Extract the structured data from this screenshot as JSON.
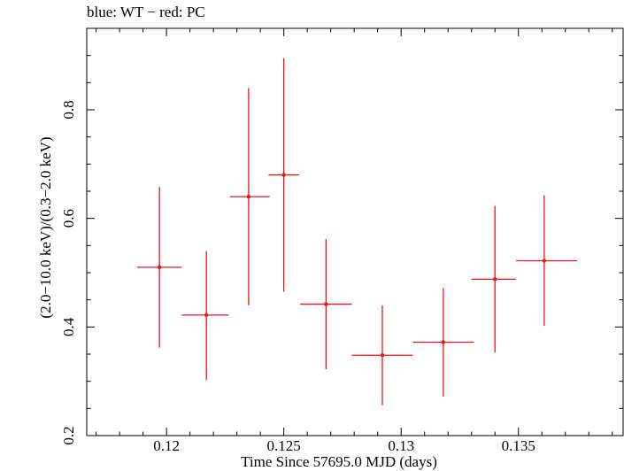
{
  "chart_data": {
    "type": "scatter",
    "title": "blue: WT − red: PC",
    "xlabel": "Time Since 57695.0 MJD (days)",
    "ylabel": "(2.0−10.0 keV)/(0.3−2.0 keV)",
    "xlim": [
      0.1166,
      0.1395
    ],
    "ylim": [
      0.2,
      0.95
    ],
    "x_ticks": [
      0.12,
      0.125,
      0.13,
      0.135
    ],
    "x_tick_labels": [
      "0.12",
      "0.125",
      "0.13",
      "0.135"
    ],
    "y_ticks": [
      0.2,
      0.4,
      0.6,
      0.8
    ],
    "y_tick_labels": [
      "0.2",
      "0.4",
      "0.6",
      "0.8"
    ],
    "grid": false,
    "series": [
      {
        "color": "#e8141d",
        "points": [
          {
            "x": 0.1197,
            "y": 0.51,
            "xerr_low": 0.00095,
            "xerr_high": 0.00095,
            "yerr_low": 0.148,
            "yerr_high": 0.148
          },
          {
            "x": 0.1217,
            "y": 0.422,
            "xerr_low": 0.00105,
            "xerr_high": 0.00095,
            "yerr_low": 0.12,
            "yerr_high": 0.118
          },
          {
            "x": 0.1235,
            "y": 0.64,
            "xerr_low": 0.0008,
            "xerr_high": 0.0009,
            "yerr_low": 0.2,
            "yerr_high": 0.2
          },
          {
            "x": 0.125,
            "y": 0.68,
            "xerr_low": 0.00065,
            "xerr_high": 0.00065,
            "yerr_low": 0.215,
            "yerr_high": 0.215
          },
          {
            "x": 0.1268,
            "y": 0.442,
            "xerr_low": 0.0011,
            "xerr_high": 0.0011,
            "yerr_low": 0.12,
            "yerr_high": 0.12
          },
          {
            "x": 0.1292,
            "y": 0.348,
            "xerr_low": 0.0013,
            "xerr_high": 0.0013,
            "yerr_low": 0.092,
            "yerr_high": 0.092
          },
          {
            "x": 0.1318,
            "y": 0.372,
            "xerr_low": 0.0013,
            "xerr_high": 0.0013,
            "yerr_low": 0.1,
            "yerr_high": 0.1
          },
          {
            "x": 0.134,
            "y": 0.488,
            "xerr_low": 0.001,
            "xerr_high": 0.0009,
            "yerr_low": 0.135,
            "yerr_high": 0.135
          },
          {
            "x": 0.1361,
            "y": 0.522,
            "xerr_low": 0.0012,
            "xerr_high": 0.0014,
            "yerr_low": 0.12,
            "yerr_high": 0.12
          }
        ]
      }
    ]
  }
}
